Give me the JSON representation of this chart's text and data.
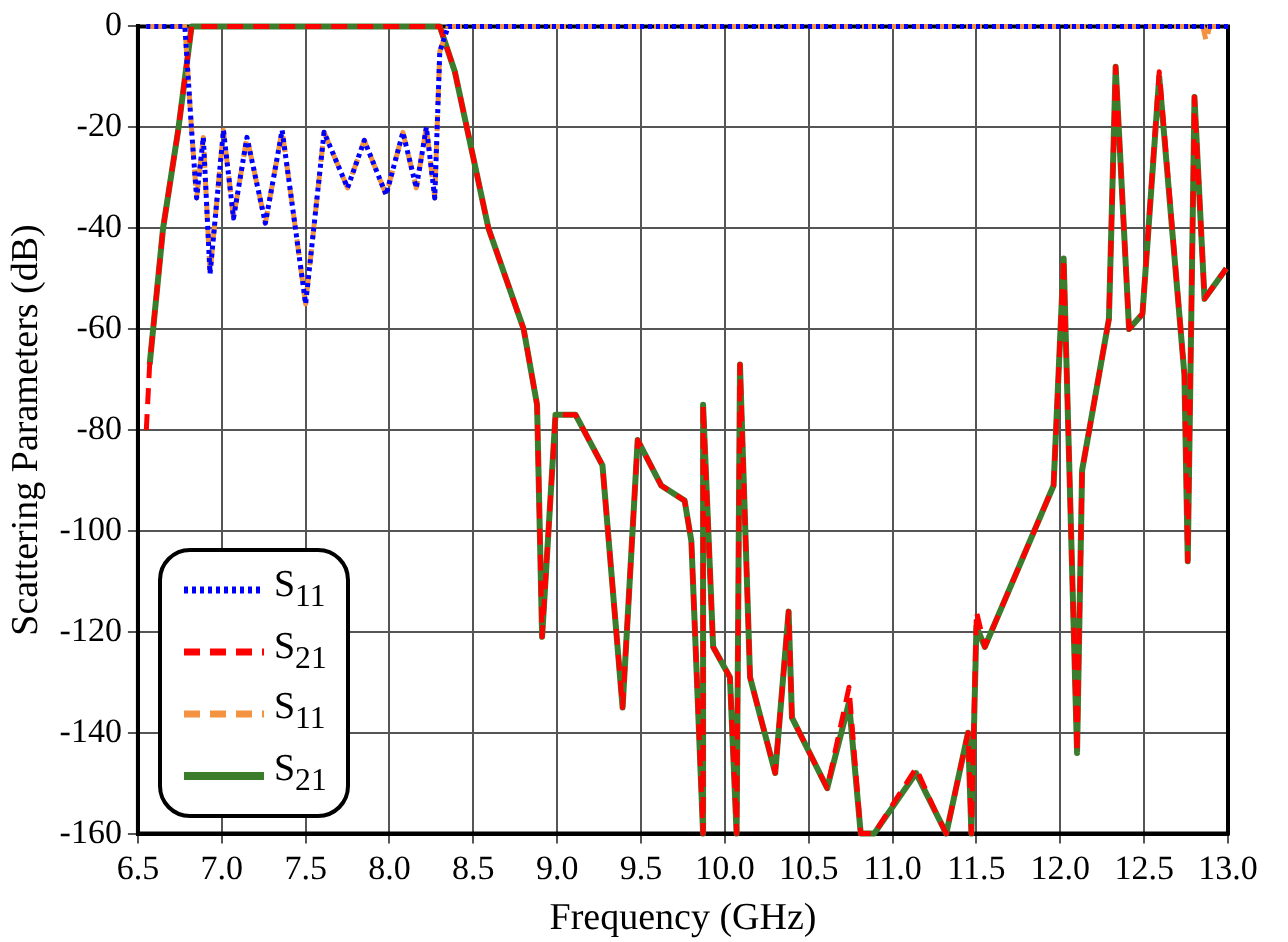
{
  "chart_data": {
    "type": "line",
    "xlabel": "Frequency (GHz)",
    "ylabel": "Scattering Parameters (dB)",
    "xlim": [
      6.5,
      13.0
    ],
    "ylim": [
      -160,
      0
    ],
    "xticks": [
      {
        "value": 6.5,
        "label": "6.5"
      },
      {
        "value": 7.0,
        "label": "7.0"
      },
      {
        "value": 7.5,
        "label": "7.5"
      },
      {
        "value": 8.0,
        "label": "8.0"
      },
      {
        "value": 8.5,
        "label": "8.5"
      },
      {
        "value": 9.0,
        "label": "9.0"
      },
      {
        "value": 9.5,
        "label": "9.5"
      },
      {
        "value": 10.0,
        "label": "10.0"
      },
      {
        "value": 10.5,
        "label": "10.5"
      },
      {
        "value": 11.0,
        "label": "11.0"
      },
      {
        "value": 11.5,
        "label": "11.5"
      },
      {
        "value": 12.0,
        "label": "12.0"
      },
      {
        "value": 12.5,
        "label": "12.5"
      },
      {
        "value": 13.0,
        "label": "13.0"
      }
    ],
    "yticks": [
      -160,
      -140,
      -120,
      -100,
      -80,
      -60,
      -40,
      -20,
      0
    ],
    "grid": true,
    "legend": "bottom left",
    "marker": "none",
    "series": [
      {
        "name": "S$_{11}$",
        "color": "#0000ff",
        "line_style": "dotted",
        "x": [
          6.55,
          6.78,
          6.82,
          6.85,
          6.89,
          6.93,
          7.01,
          7.07,
          7.15,
          7.26,
          7.36,
          7.5,
          7.61,
          7.75,
          7.85,
          7.98,
          8.08,
          8.16,
          8.22,
          8.27,
          8.3,
          8.35,
          13.0
        ],
        "values": [
          0,
          0,
          -20.6,
          -34,
          -22,
          -49,
          -20.6,
          -38,
          -22,
          -39,
          -20.6,
          -55,
          -21,
          -32,
          -22.6,
          -33.4,
          -21,
          -32,
          -20,
          -34,
          -5,
          0,
          0
        ]
      },
      {
        "name": "S$_{21}$",
        "color": "#ff0000",
        "line_style": "dashed",
        "x": [
          6.55,
          6.57,
          6.65,
          6.74,
          6.82,
          8.3,
          8.39,
          8.59,
          8.8,
          8.88,
          8.91,
          8.99,
          9.11,
          9.27,
          9.39,
          9.48,
          9.62,
          9.76,
          9.8,
          9.87,
          9.87,
          9.93,
          10.03,
          10.07,
          10.09,
          10.15,
          10.3,
          10.38,
          10.4,
          10.61,
          10.74,
          10.81,
          10.89,
          11.14,
          11.26,
          11.32,
          11.45,
          11.47,
          11.5,
          11.55,
          11.96,
          12.02,
          12.1,
          12.13,
          12.29,
          12.33,
          12.41,
          12.49,
          12.59,
          12.74,
          12.76,
          12.8,
          12.86,
          12.99
        ],
        "values": [
          -80,
          -67,
          -40,
          -20.6,
          0,
          0,
          -9,
          -40,
          -60,
          -75,
          -121,
          -77,
          -77,
          -87,
          -135,
          -82,
          -91,
          -94,
          -102,
          -160,
          -75,
          -123,
          -129,
          -160,
          -67,
          -129,
          -148,
          -116,
          -137,
          -151,
          -131,
          -160,
          -160,
          -147,
          -156,
          -160,
          -140,
          -160,
          -116,
          -123,
          -91,
          -46,
          -144,
          -88,
          -58,
          -8,
          -60,
          -57,
          -9,
          -69,
          -106,
          -14,
          -54,
          -48
        ]
      },
      {
        "name": "S$_{11}$",
        "color": "#f39241",
        "line_style": "dashed",
        "x": [
          6.55,
          6.78,
          6.82,
          6.85,
          6.89,
          6.93,
          7.01,
          7.07,
          7.15,
          7.26,
          7.36,
          7.5,
          7.61,
          7.75,
          7.85,
          7.98,
          8.08,
          8.16,
          8.22,
          8.27,
          8.3,
          8.35,
          12.85,
          12.87,
          12.89,
          13.0
        ],
        "values": [
          0,
          0,
          -20.6,
          -34,
          -22,
          -49,
          -20.6,
          -38,
          -22,
          -39,
          -20.6,
          -55,
          -21,
          -32,
          -22.6,
          -33.4,
          -21,
          -32,
          -20,
          -34,
          -5,
          0,
          0,
          -3,
          0,
          0
        ]
      },
      {
        "name": "S$_{21}$",
        "color": "#3b7d2c",
        "line_style": "solid",
        "x": [
          6.57,
          6.65,
          6.74,
          6.82,
          8.3,
          8.39,
          8.59,
          8.8,
          8.88,
          8.91,
          8.99,
          9.11,
          9.27,
          9.39,
          9.48,
          9.62,
          9.76,
          9.8,
          9.87,
          9.87,
          9.93,
          10.03,
          10.07,
          10.09,
          10.15,
          10.3,
          10.38,
          10.4,
          10.61,
          10.74,
          10.81,
          10.89,
          11.14,
          11.26,
          11.32,
          11.45,
          11.47,
          11.5,
          11.55,
          11.96,
          12.02,
          12.1,
          12.13,
          12.29,
          12.33,
          12.41,
          12.49,
          12.59,
          12.74,
          12.76,
          12.8,
          12.86,
          12.99
        ],
        "values": [
          -67,
          -40,
          -20.6,
          0,
          0,
          -9,
          -40,
          -60,
          -75,
          -121,
          -77,
          -77,
          -87,
          -135,
          -82,
          -91,
          -94,
          -102,
          -160,
          -75,
          -123,
          -129,
          -160,
          -67,
          -129,
          -148,
          -116,
          -137,
          -151,
          -134,
          -160,
          -160,
          -148,
          -156,
          -160,
          -140,
          -160,
          -119,
          -123,
          -91,
          -46,
          -144,
          -88,
          -58,
          -8,
          -60,
          -57,
          -10,
          -69,
          -106,
          -14,
          -54,
          -48
        ]
      }
    ]
  }
}
